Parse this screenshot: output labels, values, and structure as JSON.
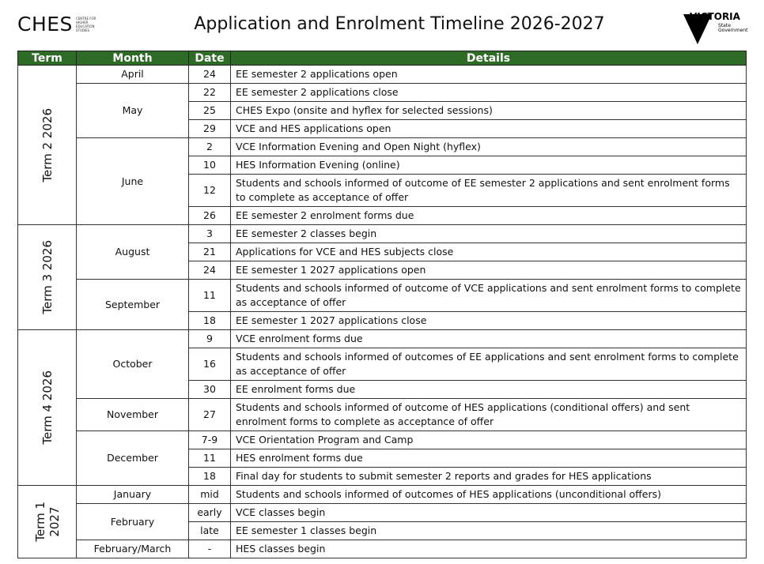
{
  "header": {
    "logo_text": "CHES",
    "logo_small": "CENTRE FOR HIGHER EDUCATION STUDIES",
    "title": "Application and Enrolment Timeline 2026-2027",
    "gov_name": "VICTORIA",
    "gov_sub": "State Government"
  },
  "table": {
    "columns": [
      "Term",
      "Month",
      "Date",
      "Details"
    ],
    "terms": [
      {
        "label": [
          "Term 2 2026"
        ],
        "months": [
          {
            "label": "April",
            "rows": [
              {
                "date": "24",
                "details": "EE semester 2 applications open"
              }
            ]
          },
          {
            "label": "May",
            "rows": [
              {
                "date": "22",
                "details": "EE semester 2 applications close"
              },
              {
                "date": "25",
                "details": "CHES Expo (onsite and hyflex for selected sessions)"
              },
              {
                "date": "29",
                "details": "VCE and HES applications open"
              }
            ]
          },
          {
            "label": "June",
            "rows": [
              {
                "date": "2",
                "details": "VCE Information Evening and Open Night (hyflex)"
              },
              {
                "date": "10",
                "details": "HES Information Evening (online)"
              },
              {
                "date": "12",
                "details": "Students and schools informed of outcome of EE semester 2 applications and sent enrolment forms to complete as acceptance of offer"
              },
              {
                "date": "26",
                "details": "EE semester 2 enrolment forms due"
              }
            ]
          }
        ]
      },
      {
        "label": [
          "Term 3 2026"
        ],
        "months": [
          {
            "label": "August",
            "rows": [
              {
                "date": "3",
                "details": "EE semester 2 classes begin"
              },
              {
                "date": "21",
                "details": "Applications for VCE and HES subjects close"
              },
              {
                "date": "24",
                "details": "EE semester 1 2027 applications open"
              }
            ]
          },
          {
            "label": "September",
            "rows": [
              {
                "date": "11",
                "details": "Students and schools informed of outcome of VCE applications and sent enrolment forms to complete as acceptance of offer"
              },
              {
                "date": "18",
                "details": "EE semester 1 2027 applications close"
              }
            ]
          }
        ]
      },
      {
        "label": [
          "Term 4 2026"
        ],
        "months": [
          {
            "label": "October",
            "rows": [
              {
                "date": "9",
                "details": "VCE enrolment forms due"
              },
              {
                "date": "16",
                "details": "Students and schools informed of outcomes of EE applications and sent enrolment forms to complete as acceptance of offer"
              },
              {
                "date": "30",
                "details": "EE enrolment forms due"
              }
            ]
          },
          {
            "label": "November",
            "rows": [
              {
                "date": "27",
                "details": "Students and schools informed of outcome of HES applications (conditional offers) and sent enrolment forms to complete as acceptance of offer"
              }
            ]
          },
          {
            "label": "December",
            "rows": [
              {
                "date": "7-9",
                "details": "VCE Orientation Program and Camp"
              },
              {
                "date": "11",
                "details": "HES enrolment forms due"
              },
              {
                "date": "18",
                "details": "Final day for students to submit semester 2 reports and grades for HES applications"
              }
            ]
          }
        ]
      },
      {
        "label": [
          "Term 1",
          "2027"
        ],
        "months": [
          {
            "label": "January",
            "rows": [
              {
                "date": "mid",
                "details": "Students and schools informed of outcomes of HES applications (unconditional offers)"
              }
            ]
          },
          {
            "label": "February",
            "rows": [
              {
                "date": "early",
                "details": "VCE classes begin"
              },
              {
                "date": "late",
                "details": "EE semester 1 classes begin"
              }
            ]
          },
          {
            "label": "February/March",
            "rows": [
              {
                "date": "-",
                "details": "HES classes begin"
              }
            ]
          }
        ]
      }
    ]
  }
}
